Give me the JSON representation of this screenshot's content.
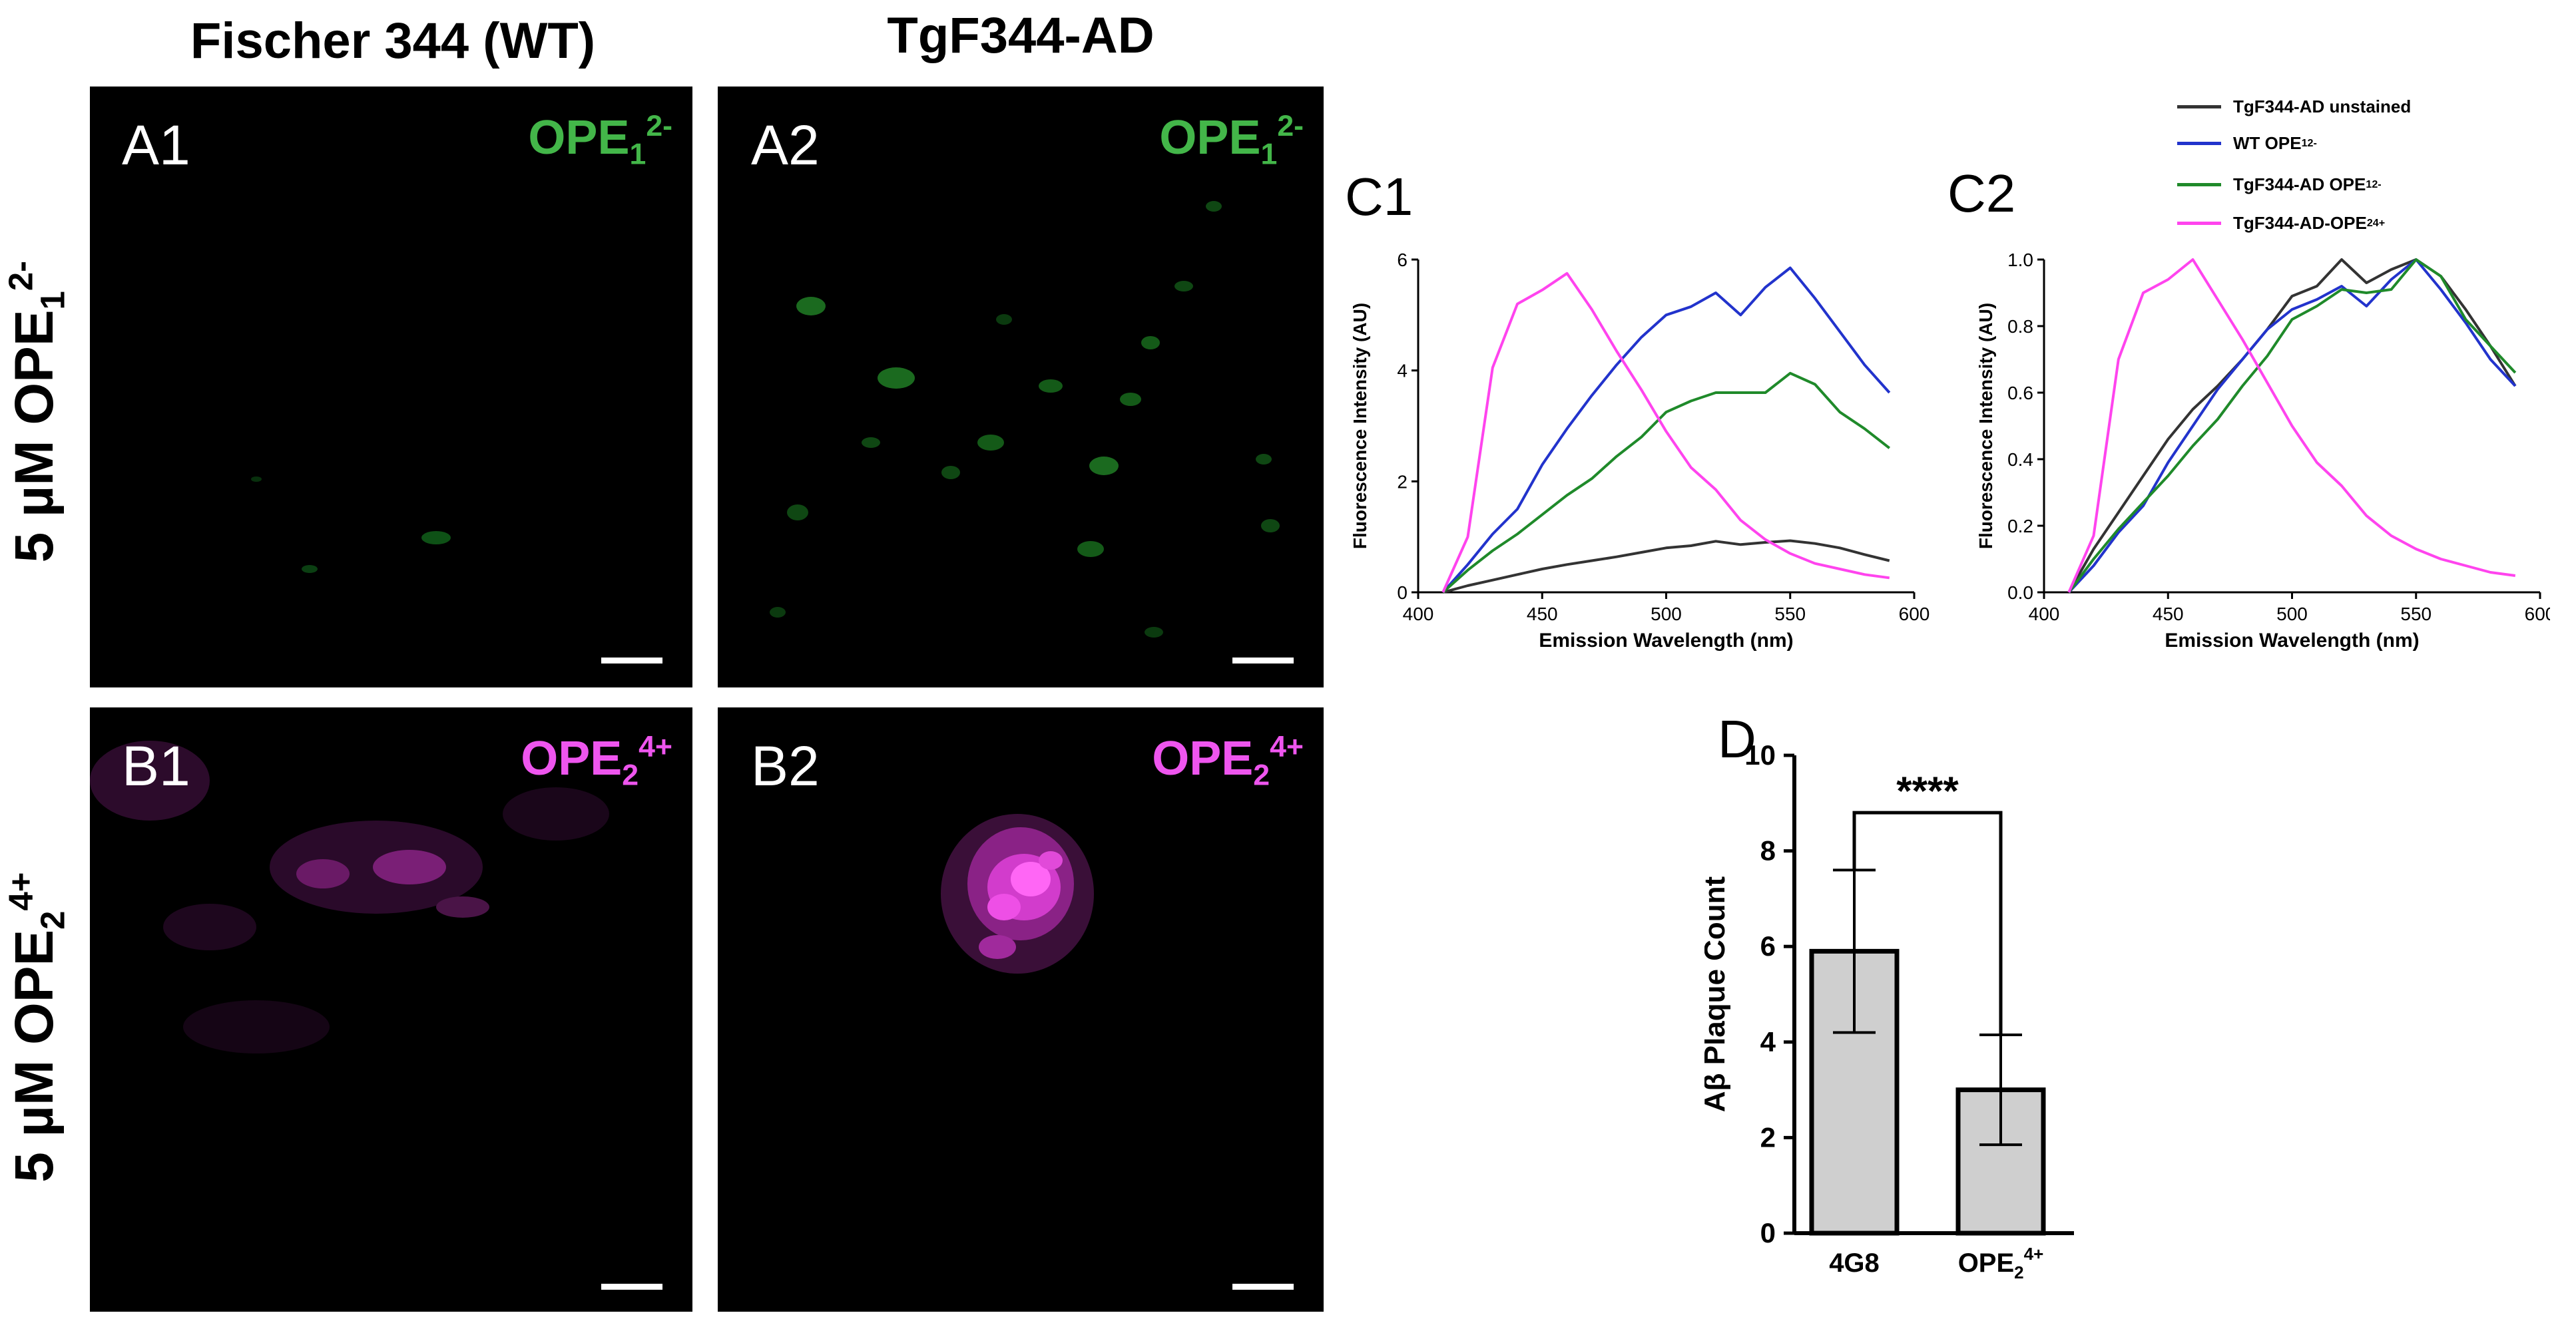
{
  "column_titles": {
    "wt": "Fischer 344 (WT)",
    "tg": "TgF344-AD"
  },
  "row_titles": {
    "ope1": {
      "prefix": "5 µM OPE",
      "sub": "1",
      "sup": "2-"
    },
    "ope2": {
      "prefix": "5 µM OPE",
      "sub": "2",
      "sup": "4+"
    }
  },
  "micrographs": [
    {
      "label": "A1",
      "dye": {
        "base": "OPE",
        "sub": "1",
        "sup": "2-"
      },
      "dye_color": "#43b649"
    },
    {
      "label": "A2",
      "dye": {
        "base": "OPE",
        "sub": "1",
        "sup": "2-"
      },
      "dye_color": "#43b649"
    },
    {
      "label": "B1",
      "dye": {
        "base": "OPE",
        "sub": "2",
        "sup": "4+"
      },
      "dye_color": "#ee55ee"
    },
    {
      "label": "B2",
      "dye": {
        "base": "OPE",
        "sub": "2",
        "sup": "4+"
      },
      "dye_color": "#ee55ee"
    }
  ],
  "legend": [
    {
      "name": "TgF344-AD unstained",
      "color": "#333333"
    },
    {
      "name_base": "WT OPE",
      "sub": "1",
      "sup": "2-",
      "color": "#2233cc"
    },
    {
      "name_base": "TgF344-AD OPE",
      "sub": "1",
      "sup": "2-",
      "color": "#1f8a2a"
    },
    {
      "name_base": "TgF344-AD-OPE",
      "sub": "2",
      "sup": "4+",
      "color": "#ff44ee"
    }
  ],
  "panel_labels": {
    "c1": "C1",
    "c2": "C2",
    "d": "D"
  },
  "chart_data": [
    {
      "id": "C1",
      "type": "line",
      "xlabel": "Emission Wavelength (nm)",
      "ylabel": "Fluorescence Intensity (AU)",
      "xlim": [
        400,
        600
      ],
      "ylim": [
        0,
        6
      ],
      "xticks": [
        400,
        450,
        500,
        550,
        600
      ],
      "yticks": [
        0,
        2,
        4,
        6
      ],
      "x": [
        410,
        420,
        430,
        440,
        450,
        460,
        470,
        480,
        490,
        500,
        510,
        520,
        530,
        540,
        550,
        560,
        570,
        580,
        590
      ],
      "series": [
        {
          "name": "TgF344-AD unstained",
          "color": "#333333",
          "values": [
            0.0,
            0.12,
            0.22,
            0.32,
            0.42,
            0.5,
            0.57,
            0.64,
            0.72,
            0.8,
            0.84,
            0.92,
            0.86,
            0.9,
            0.93,
            0.88,
            0.8,
            0.68,
            0.57
          ]
        },
        {
          "name": "WT OPE1 2-",
          "color": "#2233cc",
          "values": [
            0.0,
            0.5,
            1.05,
            1.5,
            2.3,
            2.95,
            3.55,
            4.1,
            4.6,
            5.0,
            5.15,
            5.4,
            5.0,
            5.5,
            5.85,
            5.3,
            4.7,
            4.1,
            3.6
          ]
        },
        {
          "name": "TgF344-AD OPE1 2-",
          "color": "#1f8a2a",
          "values": [
            0.0,
            0.4,
            0.75,
            1.05,
            1.4,
            1.75,
            2.05,
            2.45,
            2.8,
            3.25,
            3.45,
            3.6,
            3.6,
            3.6,
            3.95,
            3.75,
            3.25,
            2.95,
            2.6
          ]
        },
        {
          "name": "TgF344-AD-OPE2 4+",
          "color": "#ff44ee",
          "values": [
            0.0,
            1.0,
            4.05,
            5.2,
            5.45,
            5.75,
            5.1,
            4.35,
            3.65,
            2.9,
            2.25,
            1.85,
            1.3,
            0.95,
            0.7,
            0.52,
            0.42,
            0.32,
            0.26
          ]
        }
      ]
    },
    {
      "id": "C2",
      "type": "line",
      "xlabel": "Emission Wavelength (nm)",
      "ylabel": "Fluorescence Intensity (AU)",
      "xlim": [
        400,
        600
      ],
      "ylim": [
        0,
        1.0
      ],
      "xticks": [
        400,
        450,
        500,
        550,
        600
      ],
      "yticks": [
        0.0,
        0.2,
        0.4,
        0.6,
        0.8,
        1.0
      ],
      "x": [
        410,
        420,
        430,
        440,
        450,
        460,
        470,
        480,
        490,
        500,
        510,
        520,
        530,
        540,
        550,
        560,
        570,
        580,
        590
      ],
      "series": [
        {
          "name": "TgF344-AD unstained",
          "color": "#333333",
          "values": [
            0.0,
            0.13,
            0.24,
            0.35,
            0.46,
            0.55,
            0.62,
            0.7,
            0.79,
            0.89,
            0.92,
            1.0,
            0.93,
            0.97,
            1.0,
            0.95,
            0.85,
            0.74,
            0.62
          ]
        },
        {
          "name": "WT OPE1 2-",
          "color": "#2233cc",
          "values": [
            0.0,
            0.08,
            0.18,
            0.26,
            0.39,
            0.5,
            0.61,
            0.7,
            0.79,
            0.85,
            0.88,
            0.92,
            0.86,
            0.94,
            1.0,
            0.91,
            0.81,
            0.7,
            0.62
          ]
        },
        {
          "name": "TgF344-AD OPE1 2-",
          "color": "#1f8a2a",
          "values": [
            0.0,
            0.1,
            0.19,
            0.27,
            0.35,
            0.44,
            0.52,
            0.62,
            0.71,
            0.82,
            0.86,
            0.91,
            0.9,
            0.91,
            1.0,
            0.95,
            0.82,
            0.74,
            0.66
          ]
        },
        {
          "name": "TgF344-AD-OPE2 4+",
          "color": "#ff44ee",
          "values": [
            0.0,
            0.17,
            0.7,
            0.9,
            0.94,
            1.0,
            0.88,
            0.76,
            0.63,
            0.5,
            0.39,
            0.32,
            0.23,
            0.17,
            0.13,
            0.1,
            0.08,
            0.06,
            0.05
          ]
        }
      ]
    },
    {
      "id": "D",
      "type": "bar",
      "ylabel": "Aβ Plaque Count",
      "ylim": [
        0,
        10
      ],
      "yticks": [
        0,
        2,
        4,
        6,
        8,
        10
      ],
      "categories": [
        "4G8",
        "OPE2 4+"
      ],
      "category_display": [
        {
          "base": "4G8",
          "sub": "",
          "sup": ""
        },
        {
          "base": "OPE",
          "sub": "2",
          "sup": "4+"
        }
      ],
      "values": [
        5.9,
        3.0
      ],
      "errors": [
        1.7,
        1.15
      ],
      "significance": "****",
      "bar_color": "#cfcfcf"
    }
  ]
}
